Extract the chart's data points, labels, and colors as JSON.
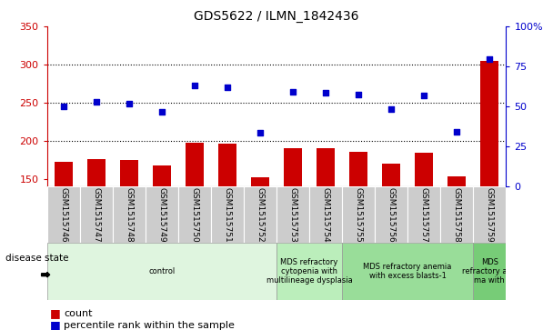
{
  "title": "GDS5622 / ILMN_1842436",
  "samples": [
    "GSM1515746",
    "GSM1515747",
    "GSM1515748",
    "GSM1515749",
    "GSM1515750",
    "GSM1515751",
    "GSM1515752",
    "GSM1515753",
    "GSM1515754",
    "GSM1515755",
    "GSM1515756",
    "GSM1515757",
    "GSM1515758",
    "GSM1515759"
  ],
  "bar_values": [
    172,
    176,
    175,
    168,
    197,
    196,
    152,
    190,
    190,
    185,
    170,
    184,
    153,
    305
  ],
  "scatter_values": [
    245,
    251,
    249,
    238,
    272,
    270,
    210,
    264,
    263,
    260,
    241,
    259,
    212,
    307
  ],
  "ylim_left": [
    140,
    350
  ],
  "ylim_right": [
    0,
    100
  ],
  "yticks_left": [
    150,
    200,
    250,
    300,
    350
  ],
  "yticks_right": [
    0,
    25,
    50,
    75,
    100
  ],
  "bar_color": "#cc0000",
  "scatter_color": "#0000cc",
  "bar_width": 0.55,
  "disease_groups": [
    {
      "label": "control",
      "start": 0,
      "end": 6,
      "color": "#dff5df"
    },
    {
      "label": "MDS refractory\ncytopenia with\nmultilineage dysplasia",
      "start": 7,
      "end": 8,
      "color": "#bbeebb"
    },
    {
      "label": "MDS refractory anemia\nwith excess blasts-1",
      "start": 9,
      "end": 12,
      "color": "#99dd99"
    },
    {
      "label": "MDS\nrefractory ane\nma with",
      "start": 13,
      "end": 13,
      "color": "#77cc77"
    }
  ],
  "legend_count_label": "count",
  "legend_pct_label": "percentile rank within the sample",
  "disease_state_label": "disease state",
  "bar_color_hex": "#cc0000",
  "scatter_color_hex": "#0000cc",
  "sample_bg_color": "#cccccc",
  "grid_lines": [
    200,
    250,
    300
  ]
}
